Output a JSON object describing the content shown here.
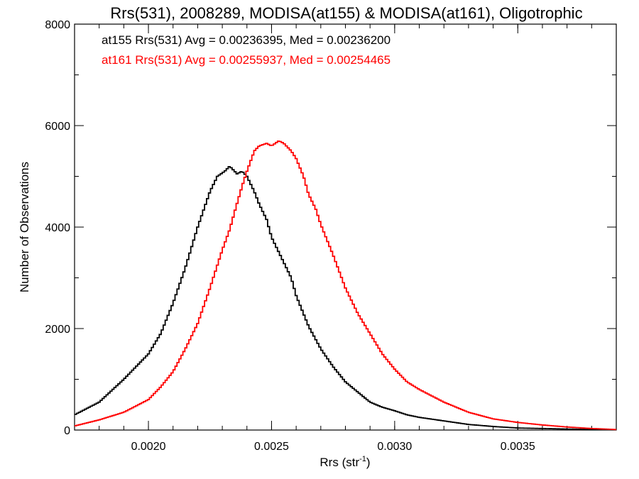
{
  "chart_data": {
    "type": "line",
    "step": true,
    "title": "Rrs(531), 2008289, MODISA(at155) & MODISA(at161), Oligotrophic",
    "xlabel": "Rrs (str",
    "xlabel_sup": "-1",
    "xlabel_close": ")",
    "ylabel": "Number of Observations",
    "xlim": [
      0.0017,
      0.0039
    ],
    "ylim": [
      0,
      8000
    ],
    "xticks": [
      0.002,
      0.0025,
      0.003,
      0.0035
    ],
    "xtick_labels": [
      "0.0020",
      "0.0025",
      "0.0030",
      "0.0035"
    ],
    "x_minor_step": 0.0001,
    "yticks": [
      0,
      2000,
      4000,
      6000,
      8000
    ],
    "ytick_labels": [
      "0",
      "2000",
      "4000",
      "6000",
      "8000"
    ],
    "y_minor_step": 1000,
    "grid": false,
    "legend_position": "top-left",
    "series": [
      {
        "name": "at155",
        "color": "#000000",
        "legend_text": "at155 Rrs(531) Avg = 0.00236395, Med = 0.00236200",
        "x": [
          0.0017,
          0.0018,
          0.0019,
          0.002,
          0.00205,
          0.0021,
          0.00215,
          0.0022,
          0.00225,
          0.00228,
          0.00231,
          0.00233,
          0.00236,
          0.00238,
          0.0024,
          0.00243,
          0.00245,
          0.00248,
          0.0025,
          0.00253,
          0.00255,
          0.00258,
          0.0026,
          0.00265,
          0.0027,
          0.00275,
          0.0028,
          0.00285,
          0.0029,
          0.00295,
          0.003,
          0.00305,
          0.0031,
          0.0032,
          0.0033,
          0.0034,
          0.0035,
          0.0036,
          0.0037,
          0.0038,
          0.0039
        ],
        "y": [
          300,
          550,
          1000,
          1500,
          1900,
          2500,
          3200,
          4000,
          4700,
          5000,
          5100,
          5200,
          5050,
          5100,
          5000,
          4700,
          4450,
          4150,
          3800,
          3500,
          3300,
          3000,
          2650,
          2050,
          1600,
          1250,
          950,
          750,
          550,
          450,
          380,
          300,
          250,
          180,
          110,
          70,
          40,
          30,
          20,
          10,
          5
        ]
      },
      {
        "name": "at161",
        "color": "#ff0000",
        "legend_text": "at161 Rrs(531) Avg = 0.00255937, Med = 0.00254465",
        "x": [
          0.0017,
          0.0018,
          0.0019,
          0.002,
          0.00205,
          0.0021,
          0.00215,
          0.0022,
          0.00225,
          0.0023,
          0.00233,
          0.00235,
          0.00238,
          0.0024,
          0.00243,
          0.00245,
          0.00248,
          0.0025,
          0.00253,
          0.00255,
          0.00258,
          0.0026,
          0.00263,
          0.00265,
          0.00268,
          0.0027,
          0.00275,
          0.0028,
          0.00285,
          0.0029,
          0.00295,
          0.003,
          0.00305,
          0.0031,
          0.0032,
          0.0033,
          0.0034,
          0.0035,
          0.0036,
          0.0037,
          0.0038,
          0.0039
        ],
        "y": [
          80,
          200,
          350,
          600,
          850,
          1150,
          1600,
          2100,
          2800,
          3550,
          3950,
          4300,
          4800,
          5100,
          5500,
          5600,
          5650,
          5600,
          5700,
          5650,
          5500,
          5350,
          5000,
          4650,
          4350,
          4050,
          3450,
          2800,
          2300,
          1900,
          1500,
          1200,
          950,
          800,
          550,
          350,
          220,
          150,
          100,
          60,
          30,
          10
        ]
      }
    ]
  }
}
